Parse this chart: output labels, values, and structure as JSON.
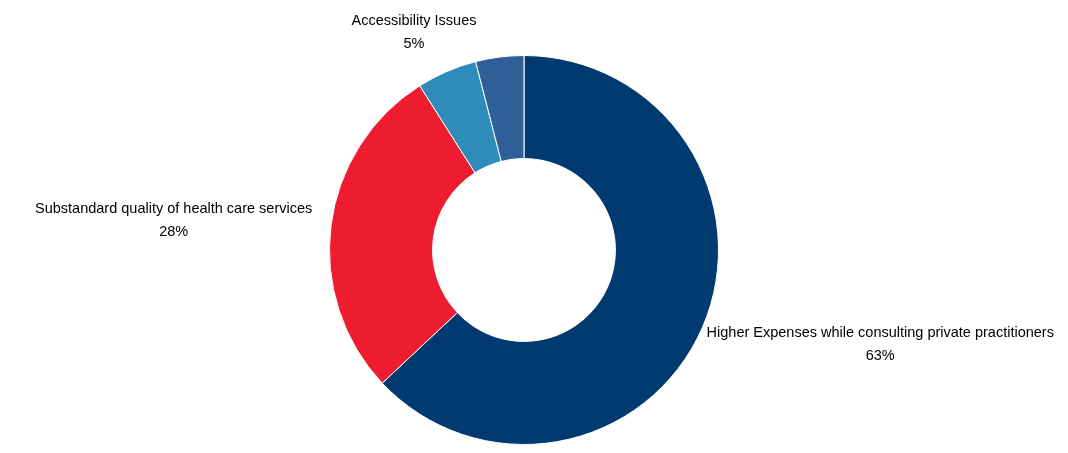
{
  "chart_data": {
    "type": "donut",
    "categories": [
      "Higher Expenses while consulting private practitioners",
      "Substandard quality of health care services",
      "Accessibility Issues",
      null
    ],
    "values": [
      63,
      28,
      5,
      4
    ],
    "colors": [
      "#003a70",
      "#ed1c2e",
      "#2e8bba",
      "#2f5f96"
    ],
    "value_labels": [
      "63%",
      "28%",
      "5%",
      null
    ]
  }
}
